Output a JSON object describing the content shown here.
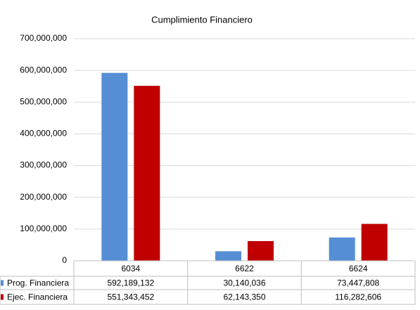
{
  "chart_data": {
    "type": "bar",
    "title": "Cumplimiento Financiero",
    "categories": [
      "6034",
      "6622",
      "6624"
    ],
    "series": [
      {
        "name": "Prog. Financiera",
        "color": "#558ed5",
        "values": [
          592189132,
          30140036,
          73447808
        ],
        "value_labels": [
          "592,189,132",
          "30,140,036",
          "73,447,808"
        ]
      },
      {
        "name": "Ejec. Financiera",
        "color": "#c00000",
        "values": [
          551343452,
          62143350,
          116282606
        ],
        "value_labels": [
          "551,343,452",
          "62,143,350",
          "116,282,606"
        ]
      }
    ],
    "ylim": [
      0,
      700000000
    ],
    "yticks": [
      0,
      {
        "value": 100000000,
        "label": "100,000,000"
      },
      {
        "value": 200000000,
        "label": "200,000,000"
      },
      {
        "value": 300000000,
        "label": "300,000,000"
      },
      {
        "value": 400000000,
        "label": "400,000,000"
      },
      {
        "value": 500000000,
        "label": "500,000,000"
      },
      {
        "value": 600000000,
        "label": "600,000,000"
      },
      {
        "value": 700000000,
        "label": "700,000,000"
      }
    ],
    "grid": true
  }
}
